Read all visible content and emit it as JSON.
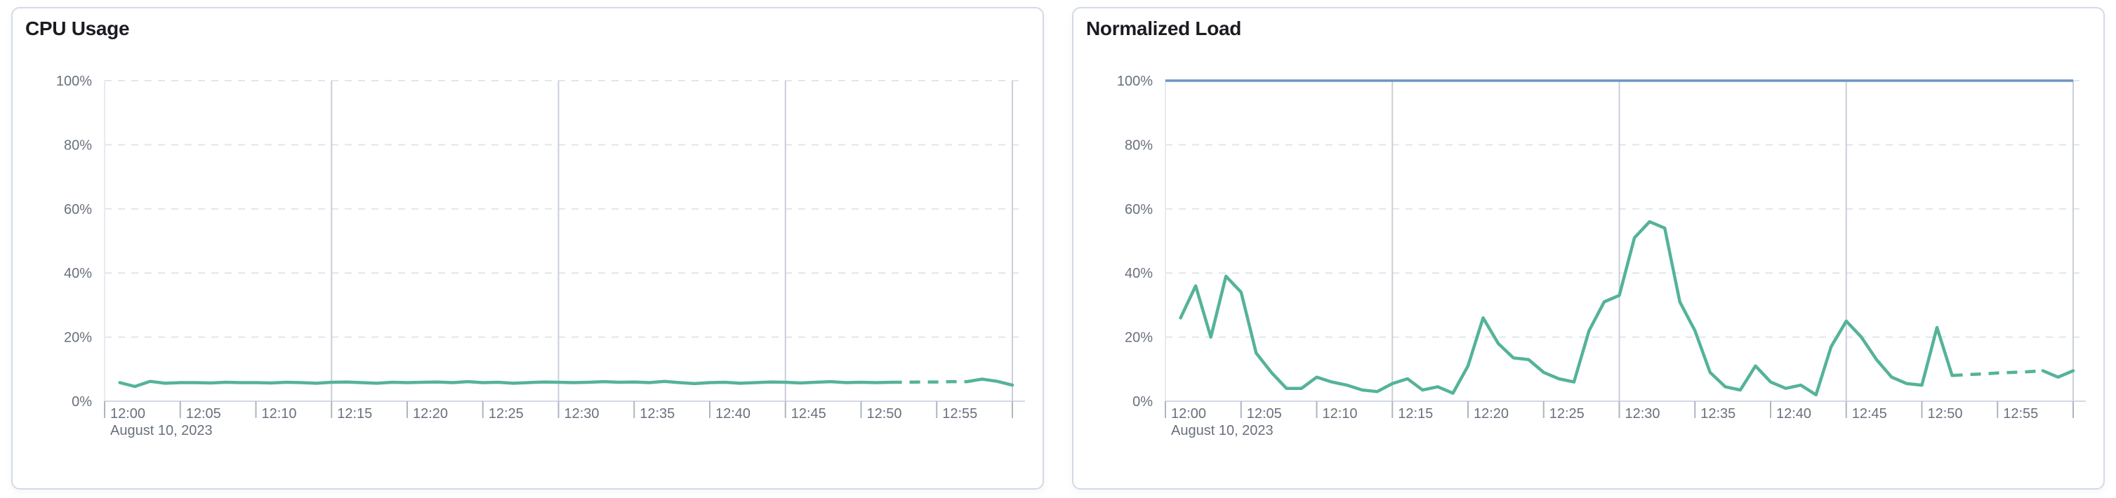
{
  "colors": {
    "series_green": "#54B399",
    "threshold_blue": "#6E95C4",
    "grid_dashed": "#E0E5EE",
    "grid_solid": "#C9CED8",
    "plot_left_edge": "#E7EBF1",
    "axis_line": "#D3DAE6",
    "tick_mark": "#AEB5C0",
    "label_text": "#69707D",
    "title_text": "#1A1C21",
    "card_border": "#D3DAE6",
    "card_bg": "#FFFFFF"
  },
  "chart_data": [
    {
      "type": "line",
      "title": "CPU Usage",
      "date_label": "August 10, 2023",
      "x_tick_labels": [
        "12:00",
        "12:05",
        "12:10",
        "12:15",
        "12:20",
        "12:25",
        "12:30",
        "12:35",
        "12:40",
        "12:45",
        "12:50",
        "12:55"
      ],
      "x_tick_step_minutes": 5,
      "y_tick_labels": [
        "0%",
        "20%",
        "40%",
        "60%",
        "80%",
        "100%"
      ],
      "y_tick_step_value": 20,
      "ylim": [
        0,
        100
      ],
      "xlim_minutes": [
        0,
        60
      ],
      "grid_vertical_minutes": [
        15,
        30,
        45,
        60
      ],
      "grid_horizontal": "dashed",
      "legend": "none",
      "threshold": null,
      "series": [
        {
          "name": "CPU Usage",
          "color_key": "series_green",
          "start_minute": 1,
          "dashed_minute_range": [
            52,
            57
          ],
          "values": [
            5.8,
            4.6,
            6.2,
            5.6,
            5.8,
            5.8,
            5.7,
            5.9,
            5.8,
            5.8,
            5.7,
            5.9,
            5.8,
            5.6,
            5.9,
            6.0,
            5.8,
            5.6,
            5.9,
            5.8,
            5.9,
            6.0,
            5.8,
            6.1,
            5.8,
            5.9,
            5.6,
            5.8,
            6.0,
            5.9,
            5.8,
            5.9,
            6.1,
            5.9,
            6.0,
            5.8,
            6.2,
            5.8,
            5.5,
            5.8,
            5.9,
            5.6,
            5.8,
            6.0,
            5.9,
            5.7,
            5.9,
            6.1,
            5.8,
            5.9,
            5.8,
            5.9,
            5.9,
            6.0,
            6.0,
            6.1,
            6.1,
            6.9,
            6.2,
            5.0
          ]
        }
      ]
    },
    {
      "type": "line",
      "title": "Normalized Load",
      "date_label": "August 10, 2023",
      "x_tick_labels": [
        "12:00",
        "12:05",
        "12:10",
        "12:15",
        "12:20",
        "12:25",
        "12:30",
        "12:35",
        "12:40",
        "12:45",
        "12:50",
        "12:55"
      ],
      "x_tick_step_minutes": 5,
      "y_tick_labels": [
        "0%",
        "20%",
        "40%",
        "60%",
        "80%",
        "100%"
      ],
      "y_tick_step_value": 20,
      "ylim": [
        0,
        100
      ],
      "xlim_minutes": [
        0,
        60
      ],
      "grid_vertical_minutes": [
        15,
        30,
        45,
        60
      ],
      "grid_horizontal": "dashed",
      "legend": "none",
      "threshold": {
        "value": 100,
        "color_key": "threshold_blue"
      },
      "series": [
        {
          "name": "Normalized Load",
          "color_key": "series_green",
          "start_minute": 1,
          "dashed_minute_range": [
            52,
            58
          ],
          "values": [
            26,
            36,
            20,
            39,
            34,
            15,
            9,
            4,
            4,
            7.5,
            6,
            5,
            3.5,
            3,
            5.5,
            7,
            3.5,
            4.5,
            2.5,
            11,
            26,
            18,
            13.5,
            13,
            9,
            7,
            6,
            22,
            31,
            33,
            51,
            56,
            54,
            31,
            22,
            9,
            4.5,
            3.5,
            11,
            6,
            4,
            5,
            2,
            17,
            25,
            20,
            13,
            7.5,
            5.5,
            5,
            23,
            8,
            8.3,
            8.5,
            8.8,
            9,
            9.2,
            9.5,
            7.5,
            9.5
          ]
        }
      ]
    }
  ]
}
